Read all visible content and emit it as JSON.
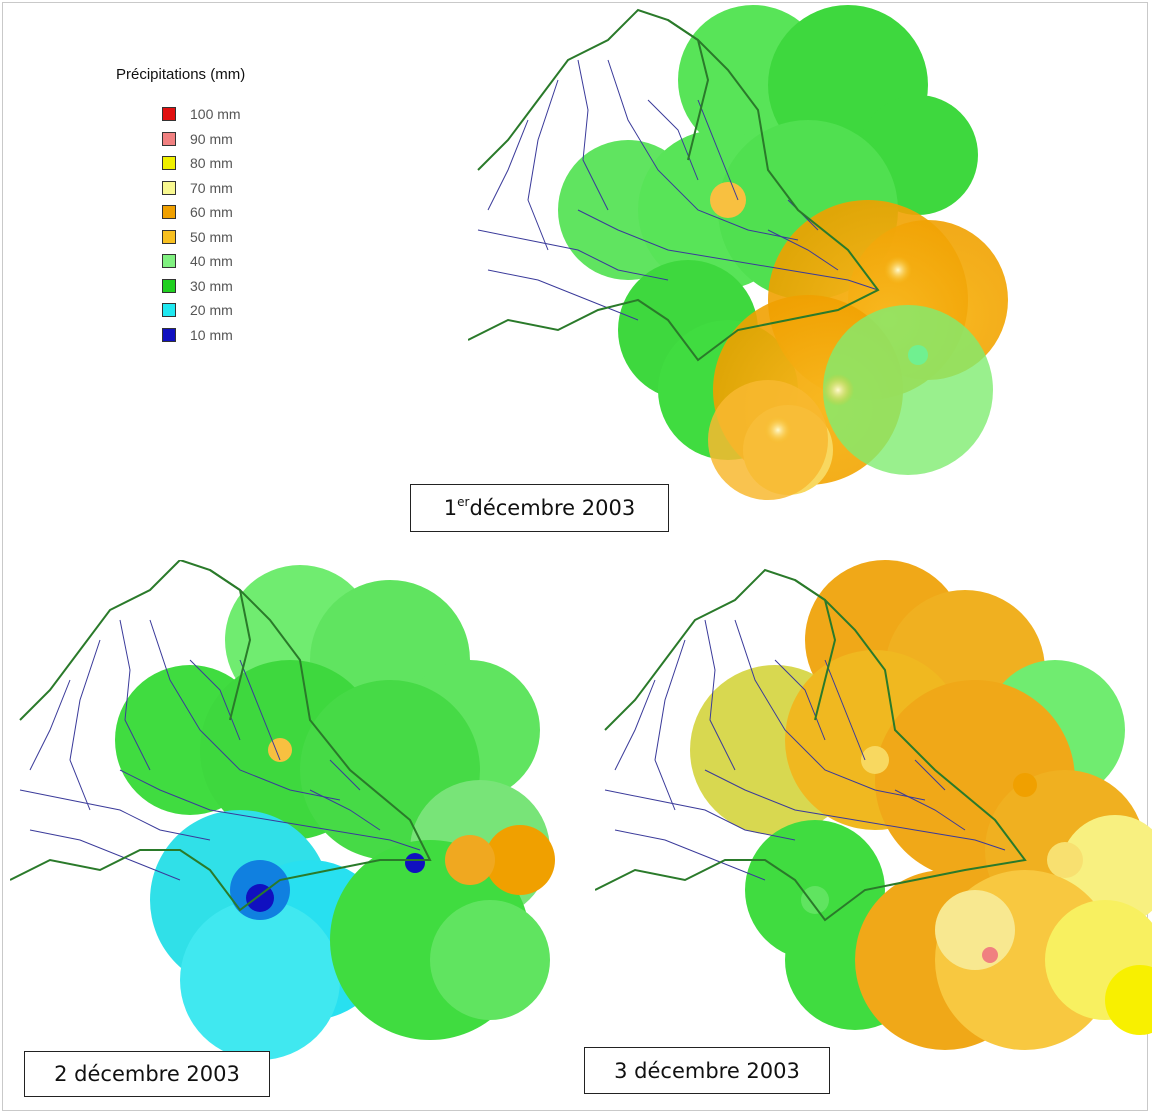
{
  "legend": {
    "title": "Précipitations (mm)",
    "items": [
      {
        "label": "100 mm",
        "color": "#e01010"
      },
      {
        "label": "90 mm",
        "color": "#f08080"
      },
      {
        "label": "80 mm",
        "color": "#f0f000"
      },
      {
        "label": "70 mm",
        "color": "#f8f890"
      },
      {
        "label": "60 mm",
        "color": "#f0a000"
      },
      {
        "label": "50 mm",
        "color": "#f8c020"
      },
      {
        "label": "40 mm",
        "color": "#80f080"
      },
      {
        "label": "30 mm",
        "color": "#20d020"
      },
      {
        "label": "20 mm",
        "color": "#20e8f0"
      },
      {
        "label": "10 mm",
        "color": "#1010c0"
      }
    ]
  },
  "maps": [
    {
      "caption_main": "1",
      "caption_sup": "er",
      "caption_rest": " décembre 2003"
    },
    {
      "caption_main": "2 décembre 2003",
      "caption_sup": "",
      "caption_rest": ""
    },
    {
      "caption_main": "3 décembre 2003",
      "caption_sup": "",
      "caption_rest": ""
    }
  ]
}
